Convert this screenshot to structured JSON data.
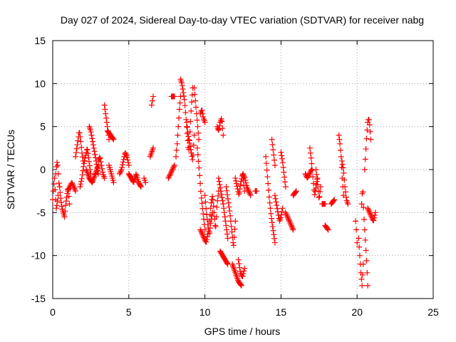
{
  "chart_data": {
    "type": "scatter",
    "title": "Day 027 of 2024, Sidereal Day-to-day VTEC variation (SDTVAR) for receiver nabg",
    "xlabel": "GPS time / hours",
    "ylabel": "SDTVAR / TECUs",
    "xlim": [
      0,
      25
    ],
    "ylim": [
      -15,
      15
    ],
    "x_ticks": [
      "0",
      "5",
      "10",
      "15",
      "20",
      "25"
    ],
    "y_ticks": [
      "15",
      "10",
      "5",
      "0",
      "-5",
      "-10",
      "-15"
    ],
    "grid": true,
    "marker": "+",
    "series_color": "#ff0000",
    "segments": [
      {
        "x0": 0.0,
        "x1": 0.35,
        "y": [
          -3.5,
          -2.0,
          -1.0,
          -3.0,
          -4.5,
          -4.0,
          -3.0
        ]
      },
      {
        "x0": 0.2,
        "x1": 0.45,
        "y": [
          -0.5,
          0.5,
          1.0,
          0.0,
          -1.5,
          -2.0
        ]
      },
      {
        "x0": 0.45,
        "x1": 1.1,
        "y": [
          -2.0,
          -3.5,
          -4.5,
          -5.0,
          -5.5,
          -4.0,
          -3.0,
          -2.0,
          -4.0
        ]
      },
      {
        "x0": 1.0,
        "x1": 1.5,
        "y": [
          -2.5,
          -2.0,
          -1.5,
          -2.0,
          -2.5
        ]
      },
      {
        "x0": 1.5,
        "x1": 2.0,
        "y": [
          1.5,
          2.5,
          3.5,
          4.5,
          3.5,
          2.0,
          1.0
        ]
      },
      {
        "x0": 1.8,
        "x1": 2.5,
        "y": [
          -2.0,
          -1.0,
          0.5,
          1.5,
          2.5,
          1.0,
          -0.5
        ]
      },
      {
        "x0": 2.4,
        "x1": 3.0,
        "y": [
          5.0,
          4.5,
          3.5,
          2.5,
          1.5,
          0.5,
          -0.5
        ]
      },
      {
        "x0": 2.2,
        "x1": 3.0,
        "y": [
          0.0,
          -1.0,
          -1.5,
          -0.5,
          0.5
        ]
      },
      {
        "x0": 3.0,
        "x1": 3.4,
        "y": [
          1.0,
          1.5,
          0.5,
          -0.5,
          -1.0
        ]
      },
      {
        "x0": 3.4,
        "x1": 3.7,
        "y": [
          7.5,
          6.5,
          5.5,
          4.5,
          3.5
        ]
      },
      {
        "x0": 3.6,
        "x1": 4.0,
        "y": [
          4.5,
          4.0,
          3.5
        ]
      },
      {
        "x0": 3.7,
        "x1": 4.0,
        "y": [
          0.5,
          -0.5,
          -1.5
        ]
      },
      {
        "x0": 4.4,
        "x1": 5.0,
        "y": [
          -0.5,
          0.0,
          1.0,
          2.0,
          1.5,
          0.5
        ]
      },
      {
        "x0": 5.0,
        "x1": 5.8,
        "y": [
          -0.5,
          -1.0,
          -1.5,
          -0.5,
          -1.5,
          -2.0
        ]
      },
      {
        "x0": 6.0,
        "x1": 6.1,
        "y": [
          -1.0,
          -1.5
        ]
      },
      {
        "x0": 6.4,
        "x1": 6.6,
        "y": [
          1.5,
          2.0,
          2.5
        ]
      },
      {
        "x0": 6.5,
        "x1": 6.6,
        "y": [
          7.5,
          8.5
        ]
      },
      {
        "x0": 7.6,
        "x1": 8.0,
        "y": [
          -1.0,
          -0.5,
          0.0,
          0.5
        ]
      },
      {
        "x0": 7.8,
        "x1": 8.0,
        "y": [
          8.5
        ]
      },
      {
        "x0": 8.1,
        "x1": 8.4,
        "y": [
          1.5,
          3.0,
          5.0,
          7.0,
          8.5
        ]
      },
      {
        "x0": 8.4,
        "x1": 9.2,
        "y": [
          10.5,
          10.0,
          9.0,
          8.0,
          6.0,
          4.0,
          2.0,
          4.5,
          7.5,
          9.5
        ]
      },
      {
        "x0": 8.8,
        "x1": 9.3,
        "y": [
          5.5,
          4.0,
          3.0,
          2.0,
          1.0,
          4.0
        ]
      },
      {
        "x0": 9.3,
        "x1": 9.6,
        "y": [
          9.5,
          8.0,
          6.5,
          5.0,
          3.5
        ]
      },
      {
        "x0": 9.5,
        "x1": 10.0,
        "y": [
          2.5,
          0.0,
          -3.0,
          -5.0,
          -7.0
        ]
      },
      {
        "x0": 9.7,
        "x1": 10.0,
        "y": [
          6.5,
          7.0,
          6.0,
          5.5
        ]
      },
      {
        "x0": 9.7,
        "x1": 10.2,
        "y": [
          -7.0,
          -7.5,
          -8.0,
          -8.5,
          -7.5
        ]
      },
      {
        "x0": 10.0,
        "x1": 10.5,
        "y": [
          -3.0,
          -5.0,
          -6.5,
          -7.5,
          -6.0,
          -5.0
        ]
      },
      {
        "x0": 10.3,
        "x1": 10.9,
        "y": [
          -6.0,
          -4.0,
          -3.0,
          -5.0,
          -7.0,
          -4.0,
          -2.5
        ]
      },
      {
        "x0": 10.8,
        "x1": 11.2,
        "y": [
          5.0,
          4.5,
          5.5,
          6.0,
          4.0
        ]
      },
      {
        "x0": 10.9,
        "x1": 11.5,
        "y": [
          -1.0,
          -2.5,
          -4.0,
          -6.0,
          -8.0
        ]
      },
      {
        "x0": 11.0,
        "x1": 11.5,
        "y": [
          -9.5,
          -10.0,
          -10.5,
          -11.0
        ]
      },
      {
        "x0": 11.4,
        "x1": 12.0,
        "y": [
          -2.0,
          -3.5,
          -5.0,
          -7.0,
          -9.0,
          -6.0
        ]
      },
      {
        "x0": 11.8,
        "x1": 12.4,
        "y": [
          -11.0,
          -12.0,
          -13.0,
          -13.5
        ]
      },
      {
        "x0": 12.0,
        "x1": 12.6,
        "y": [
          -1.0,
          -2.0,
          -3.0,
          -1.5,
          -0.5,
          -2.5
        ]
      },
      {
        "x0": 12.2,
        "x1": 12.6,
        "y": [
          -10.5,
          -12.0,
          -12.5,
          -11.5
        ]
      },
      {
        "x0": 12.5,
        "x1": 13.0,
        "y": [
          -0.5,
          -1.0,
          -2.0,
          -2.5,
          -3.0
        ]
      },
      {
        "x0": 13.3,
        "x1": 13.4,
        "y": [
          -2.5
        ]
      },
      {
        "x0": 14.0,
        "x1": 14.6,
        "y": [
          1.5,
          -1.0,
          -3.5,
          -5.5,
          -7.0,
          -8.5
        ]
      },
      {
        "x0": 14.4,
        "x1": 14.6,
        "y": [
          3.5,
          2.0,
          0.5
        ]
      },
      {
        "x0": 14.6,
        "x1": 15.1,
        "y": [
          -3.0,
          -4.0,
          -5.0,
          -6.0,
          -5.5,
          -4.5
        ]
      },
      {
        "x0": 15.0,
        "x1": 15.3,
        "y": [
          2.0,
          1.0,
          -0.5,
          -2.0
        ]
      },
      {
        "x0": 15.3,
        "x1": 15.8,
        "y": [
          -5.0,
          -5.5,
          -6.0,
          -6.5,
          -7.0
        ]
      },
      {
        "x0": 15.8,
        "x1": 16.0,
        "y": [
          -3.0,
          -2.5
        ]
      },
      {
        "x0": 16.6,
        "x1": 17.0,
        "y": [
          -0.5,
          -1.0,
          -0.5,
          0.0
        ]
      },
      {
        "x0": 16.9,
        "x1": 17.4,
        "y": [
          2.5,
          1.0,
          -1.0,
          -3.0,
          -2.0,
          -1.0
        ]
      },
      {
        "x0": 17.3,
        "x1": 17.6,
        "y": [
          0.0,
          -1.5,
          -3.5,
          -2.0
        ]
      },
      {
        "x0": 17.7,
        "x1": 17.9,
        "y": [
          -4.0
        ]
      },
      {
        "x0": 17.9,
        "x1": 18.1,
        "y": [
          -6.5,
          -7.0
        ]
      },
      {
        "x0": 18.3,
        "x1": 18.5,
        "y": [
          -4.0,
          -3.5
        ]
      },
      {
        "x0": 18.8,
        "x1": 19.1,
        "y": [
          4.0,
          3.0,
          1.5,
          -1.0,
          -3.0
        ]
      },
      {
        "x0": 19.0,
        "x1": 19.4,
        "y": [
          1.0,
          0.0,
          -2.0,
          -3.5,
          -4.0
        ]
      },
      {
        "x0": 19.9,
        "x1": 20.0,
        "y": [
          -6.0,
          -7.0,
          -8.5
        ]
      },
      {
        "x0": 20.1,
        "x1": 20.4,
        "y": [
          -8.0,
          -10.0,
          -12.0,
          -13.5,
          -11.0
        ]
      },
      {
        "x0": 20.3,
        "x1": 20.7,
        "y": [
          -4.0,
          -2.0,
          -5.0,
          -7.0,
          -9.0,
          -11.0,
          -13.5
        ]
      },
      {
        "x0": 20.5,
        "x1": 20.9,
        "y": [
          0.0,
          2.0,
          4.0,
          5.5,
          6.0,
          5.0,
          3.5
        ]
      },
      {
        "x0": 20.7,
        "x1": 21.2,
        "y": [
          -4.5,
          -5.0,
          -5.5,
          -6.0,
          -5.0
        ]
      }
    ]
  }
}
